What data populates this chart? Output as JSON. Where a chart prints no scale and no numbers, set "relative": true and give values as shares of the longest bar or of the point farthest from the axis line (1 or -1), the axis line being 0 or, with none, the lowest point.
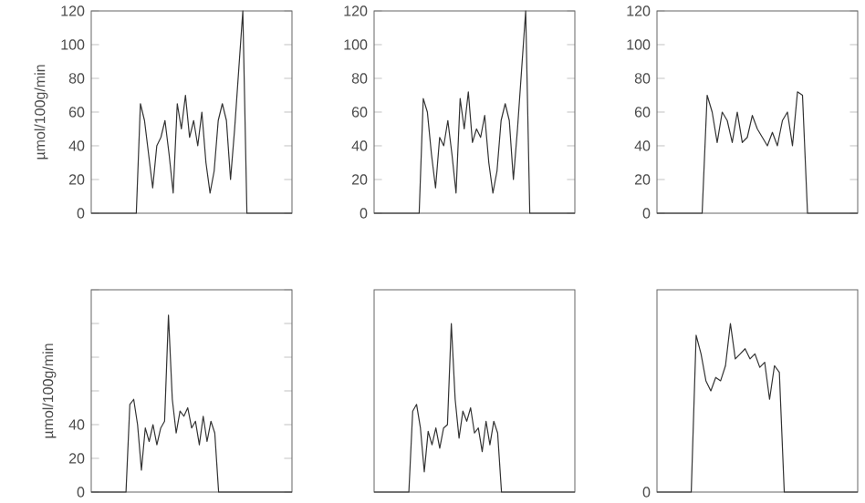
{
  "chart_data": [
    {
      "type": "line",
      "ylabel": "µmol/100g/min",
      "color": "#333333",
      "ylim": [
        0,
        120
      ],
      "yticks": [
        0,
        20,
        40,
        60,
        80,
        100,
        120
      ],
      "tick_labels": "y",
      "categories": [
        null,
        null,
        null,
        null,
        null,
        null,
        null,
        null,
        null,
        null,
        null,
        null,
        null,
        null,
        null,
        null,
        null,
        null,
        null,
        null,
        null,
        null,
        null,
        null,
        null,
        null,
        null,
        null,
        null,
        null,
        null,
        null,
        null,
        null,
        null,
        null,
        null,
        null,
        null,
        null,
        null,
        null,
        null,
        null,
        null,
        null,
        null,
        null,
        null,
        null
      ],
      "values": [
        0,
        0,
        0,
        0,
        0,
        0,
        0,
        0,
        0,
        0,
        0,
        0,
        65,
        55,
        35,
        15,
        40,
        45,
        55,
        35,
        12,
        65,
        50,
        70,
        45,
        55,
        40,
        60,
        30,
        12,
        25,
        55,
        65,
        55,
        20,
        50,
        85,
        120,
        0,
        0,
        0,
        0,
        0,
        0,
        0,
        0,
        0,
        0,
        0,
        0
      ]
    },
    {
      "type": "line",
      "color": "#333333",
      "ylim": [
        0,
        120
      ],
      "yticks": [
        0,
        20,
        40,
        60,
        80,
        100,
        120
      ],
      "tick_labels": "y",
      "categories": [
        null,
        null,
        null,
        null,
        null,
        null,
        null,
        null,
        null,
        null,
        null,
        null,
        null,
        null,
        null,
        null,
        null,
        null,
        null,
        null,
        null,
        null,
        null,
        null,
        null,
        null,
        null,
        null,
        null,
        null,
        null,
        null,
        null,
        null,
        null,
        null,
        null,
        null,
        null,
        null,
        null,
        null,
        null,
        null,
        null,
        null,
        null,
        null,
        null,
        null
      ],
      "values": [
        0,
        0,
        0,
        0,
        0,
        0,
        0,
        0,
        0,
        0,
        0,
        0,
        68,
        60,
        35,
        15,
        45,
        40,
        55,
        35,
        12,
        68,
        50,
        72,
        42,
        50,
        45,
        58,
        30,
        12,
        25,
        55,
        65,
        55,
        20,
        50,
        85,
        120,
        0,
        0,
        0,
        0,
        0,
        0,
        0,
        0,
        0,
        0,
        0,
        0
      ]
    },
    {
      "type": "line",
      "color": "#333333",
      "ylim": [
        0,
        120
      ],
      "yticks": [
        0,
        20,
        40,
        60,
        80,
        100,
        120
      ],
      "tick_labels": "y",
      "categories": [
        null,
        null,
        null,
        null,
        null,
        null,
        null,
        null,
        null,
        null,
        null,
        null,
        null,
        null,
        null,
        null,
        null,
        null,
        null,
        null,
        null,
        null,
        null,
        null,
        null,
        null,
        null,
        null,
        null,
        null,
        null,
        null,
        null,
        null,
        null,
        null,
        null,
        null,
        null,
        null,
        null
      ],
      "values": [
        0,
        0,
        0,
        0,
        0,
        0,
        0,
        0,
        0,
        0,
        70,
        60,
        42,
        60,
        55,
        42,
        60,
        42,
        45,
        58,
        50,
        45,
        40,
        48,
        40,
        55,
        60,
        40,
        72,
        70,
        0,
        0,
        0,
        0,
        0,
        0,
        0,
        0,
        0,
        0,
        0
      ]
    },
    {
      "type": "line",
      "ylabel": "µmol/100g/min",
      "color": "#333333",
      "ylim": [
        0,
        120
      ],
      "yticks": [
        0,
        20,
        40,
        {
          "value": 60,
          "label": null
        },
        {
          "value": 80,
          "label": null
        },
        {
          "value": 100,
          "label": null
        },
        {
          "value": 120,
          "label": null
        }
      ],
      "tick_labels": "y",
      "categories": [
        null,
        null,
        null,
        null,
        null,
        null,
        null,
        null,
        null,
        null,
        null,
        null,
        null,
        null,
        null,
        null,
        null,
        null,
        null,
        null,
        null,
        null,
        null,
        null,
        null,
        null,
        null,
        null,
        null,
        null,
        null,
        null,
        null,
        null,
        null,
        null,
        null,
        null,
        null,
        null,
        null,
        null,
        null,
        null,
        null,
        null,
        null,
        null,
        null,
        null,
        null,
        null,
        null
      ],
      "values": [
        0,
        0,
        0,
        0,
        0,
        0,
        0,
        0,
        0,
        0,
        52,
        55,
        40,
        13,
        38,
        30,
        40,
        28,
        38,
        42,
        105,
        55,
        35,
        48,
        45,
        50,
        38,
        42,
        28,
        45,
        30,
        42,
        35,
        0,
        0,
        0,
        0,
        0,
        0,
        0,
        0,
        0,
        0,
        0,
        0,
        0,
        0,
        0,
        0,
        0,
        0,
        0,
        0
      ]
    },
    {
      "type": "line",
      "color": "#333333",
      "relative": true,
      "categories": [
        null,
        null,
        null,
        null,
        null,
        null,
        null,
        null,
        null,
        null,
        null,
        null,
        null,
        null,
        null,
        null,
        null,
        null,
        null,
        null,
        null,
        null,
        null,
        null,
        null,
        null,
        null,
        null,
        null,
        null,
        null,
        null,
        null,
        null,
        null,
        null,
        null,
        null,
        null,
        null,
        null,
        null,
        null,
        null,
        null,
        null,
        null,
        null,
        null,
        null,
        null,
        null,
        null
      ],
      "values": [
        0,
        0,
        0,
        0,
        0,
        0,
        0,
        0,
        0,
        0,
        0.48,
        0.52,
        0.38,
        0.12,
        0.36,
        0.28,
        0.38,
        0.26,
        0.38,
        0.4,
        1,
        0.55,
        0.32,
        0.48,
        0.42,
        0.5,
        0.35,
        0.38,
        0.24,
        0.42,
        0.28,
        0.42,
        0.35,
        0,
        0,
        0,
        0,
        0,
        0,
        0,
        0,
        0,
        0,
        0,
        0,
        0,
        0,
        0,
        0,
        0,
        0,
        0,
        0
      ]
    },
    {
      "type": "line",
      "color": "#333333",
      "relative": true,
      "annotations": [
        "0"
      ],
      "categories": [
        null,
        null,
        null,
        null,
        null,
        null,
        null,
        null,
        null,
        null,
        null,
        null,
        null,
        null,
        null,
        null,
        null,
        null,
        null,
        null,
        null,
        null,
        null,
        null,
        null,
        null,
        null,
        null,
        null,
        null,
        null,
        null,
        null,
        null,
        null,
        null,
        null,
        null,
        null,
        null,
        null,
        null
      ],
      "values": [
        0,
        0,
        0,
        0,
        0,
        0,
        0,
        0,
        0.93,
        0.82,
        0.66,
        0.6,
        0.68,
        0.66,
        0.75,
        1,
        0.79,
        0.82,
        0.85,
        0.79,
        0.82,
        0.74,
        0.77,
        0.55,
        0.75,
        0.71,
        0,
        0,
        0,
        0,
        0,
        0,
        0,
        0,
        0,
        0,
        0,
        0,
        0,
        0,
        0,
        0
      ]
    }
  ]
}
